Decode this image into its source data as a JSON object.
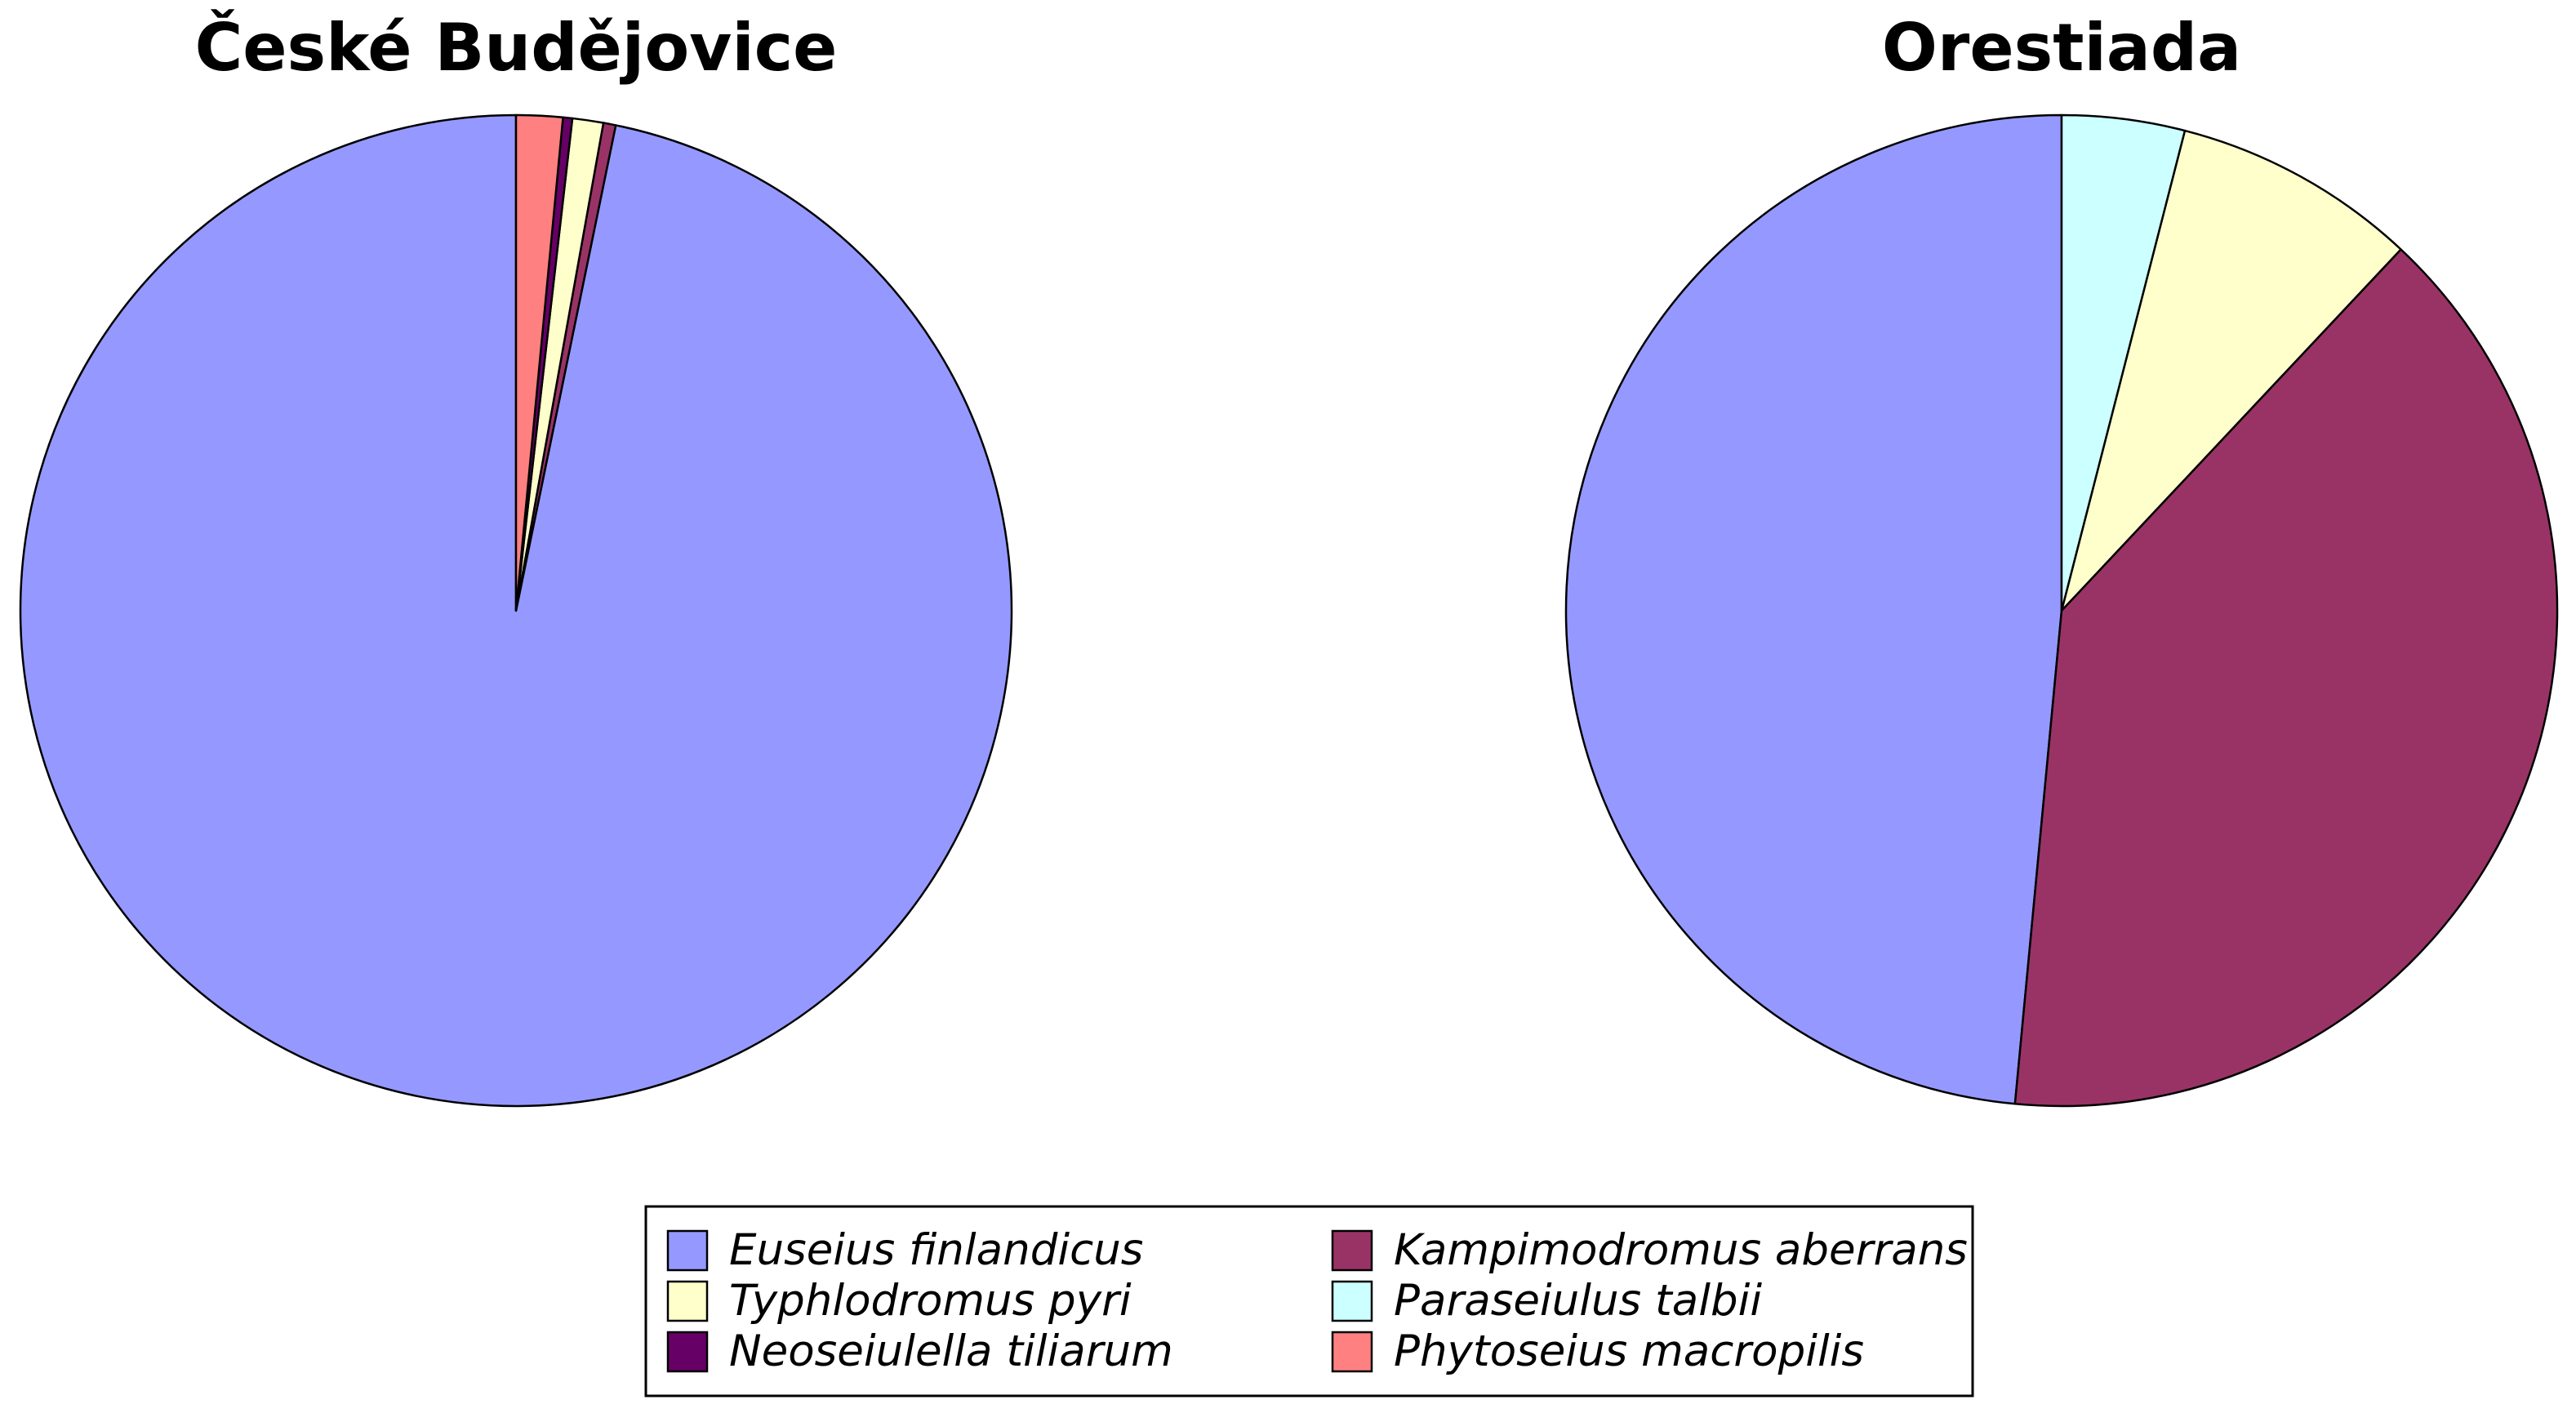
{
  "chart_data": [
    {
      "type": "pie",
      "title": "České Budějovice",
      "start_angle_deg": 0,
      "direction": "counterclockwise",
      "slices": [
        {
          "label": "Euseius finlandicus",
          "value": 96.0,
          "color": "#9599FF"
        },
        {
          "label": "Kampimodromus aberrans",
          "value": 0.4,
          "color": "#993366"
        },
        {
          "label": "Typhlodromus pyri",
          "value": 1.0,
          "color": "#FFFFCC"
        },
        {
          "label": "Neoseiulella tiliarum",
          "value": 0.3,
          "color": "#660066"
        },
        {
          "label": "Phytoseius macropilis",
          "value": 1.5,
          "color": "#FF8080"
        }
      ]
    },
    {
      "type": "pie",
      "title": "Orestiada",
      "start_angle_deg": 0,
      "direction": "counterclockwise",
      "slices": [
        {
          "label": "Euseius finlandicus",
          "value": 48.5,
          "color": "#9599FF"
        },
        {
          "label": "Kampimodromus aberrans",
          "value": 39.5,
          "color": "#993366"
        },
        {
          "label": "Typhlodromus pyri",
          "value": 8.0,
          "color": "#FFFFCC"
        },
        {
          "label": "Paraseiulus talbii",
          "value": 4.0,
          "color": "#CCFFFF"
        }
      ]
    }
  ],
  "legend": {
    "placement": "bottom-center",
    "entries": [
      {
        "label": "Euseius finlandicus",
        "color": "#9599FF"
      },
      {
        "label": "Kampimodromus aberrans",
        "color": "#993366"
      },
      {
        "label": "Typhlodromus pyri",
        "color": "#FFFFCC"
      },
      {
        "label": "Paraseiulus talbii",
        "color": "#CCFFFF"
      },
      {
        "label": "Neoseiulella tiliarum",
        "color": "#660066"
      },
      {
        "label": "Phytoseius macropilis",
        "color": "#FF8080"
      }
    ]
  }
}
